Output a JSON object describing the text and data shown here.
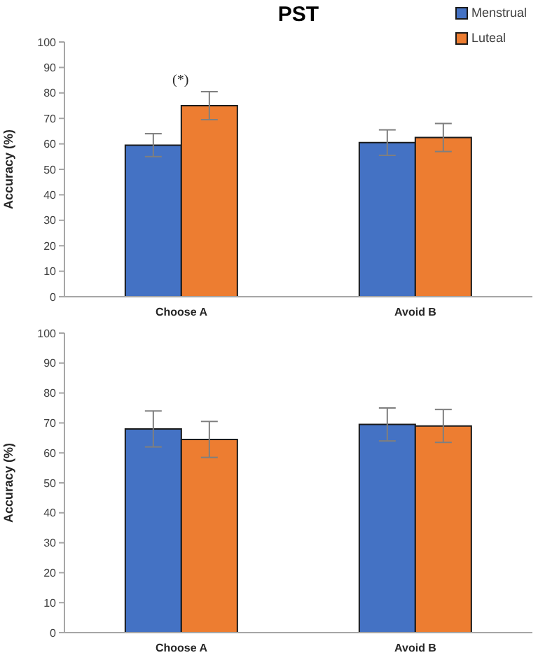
{
  "chart_data": [
    {
      "type": "bar",
      "title": "PST",
      "ylabel": "Accuracy (%)",
      "categories": [
        "Choose A",
        "Avoid B"
      ],
      "series": [
        {
          "name": "Menstrual",
          "color": "#4472c4",
          "values": [
            59.5,
            60.5
          ],
          "errors": [
            4.5,
            5
          ]
        },
        {
          "name": "Luteal",
          "color": "#ed7d31",
          "values": [
            75,
            62.5
          ],
          "errors": [
            5.5,
            5.5
          ]
        }
      ],
      "ylim": [
        0,
        100
      ],
      "yticks": [
        0,
        10,
        20,
        30,
        40,
        50,
        60,
        70,
        80,
        90,
        100
      ],
      "grid": false,
      "legend": "top right",
      "annotations": [
        "(*)"
      ]
    },
    {
      "type": "bar",
      "ylabel": "Accuracy (%)",
      "categories": [
        "Choose A",
        "Avoid B"
      ],
      "series": [
        {
          "color": "#4472c4",
          "values": [
            68,
            69.5
          ],
          "errors": [
            6,
            5.5
          ]
        },
        {
          "color": "#ed7d31",
          "values": [
            64.5,
            69
          ],
          "errors": [
            6,
            5.5
          ]
        }
      ],
      "ylim": [
        0,
        100
      ],
      "yticks": [
        0,
        10,
        20,
        30,
        40,
        50,
        60,
        70,
        80,
        90,
        100
      ],
      "grid": false,
      "legend": false
    }
  ]
}
